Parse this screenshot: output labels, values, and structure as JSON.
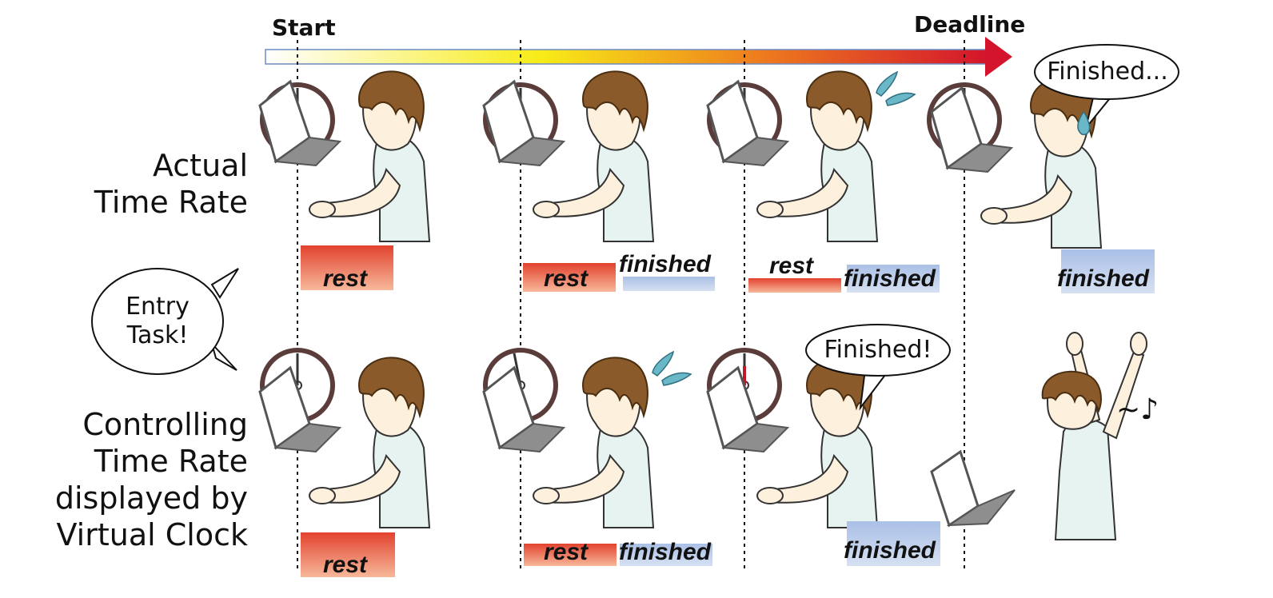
{
  "timeline": {
    "start_label": "Start",
    "deadline_label": "Deadline",
    "gradient_colors": [
      "#ffffff",
      "#f8ee1a",
      "#f08a1c",
      "#d8162b"
    ]
  },
  "rows": [
    {
      "label_lines": [
        "Actual",
        "Time Rate"
      ]
    },
    {
      "label_lines": [
        "Controlling",
        "Time Rate",
        "displayed by",
        "Virtual Clock"
      ]
    }
  ],
  "entry_bubble": "Entry\nTask!",
  "bubble_finished_actual": "Finished...",
  "bubble_finished_virtual": "Finished!",
  "music_note": "~♪",
  "bars": {
    "rest": "rest",
    "finished": "finished",
    "rest_color": "#e8553a",
    "finished_color": "#b7c9e8"
  }
}
